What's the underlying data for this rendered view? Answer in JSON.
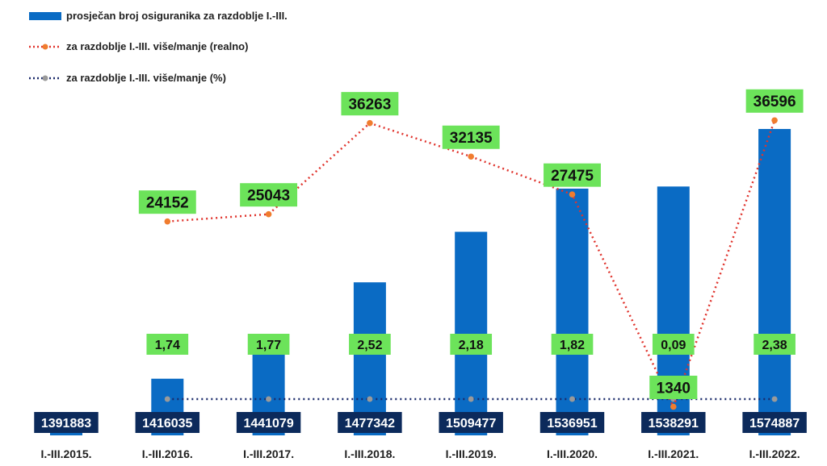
{
  "colors": {
    "bar": "#0a6bc4",
    "bar_label_bg": "#0c2a5b",
    "bar_label_text": "#ffffff",
    "callout_bg": "#6ce35a",
    "callout_text": "#111111",
    "line_real": "#e0342d",
    "marker_real": "#f07c2e",
    "line_pct": "#1b2a6a",
    "marker_pct": "#9a9a9a"
  },
  "legend": [
    {
      "label": "prosječan broj osiguranika za razdoblje I.-III.",
      "kind": "bar"
    },
    {
      "label": "za razdoblje I.-III. više/manje (realno)",
      "kind": "line_real"
    },
    {
      "label": "za razdoblje I.-III. više/manje (%)",
      "kind": "line_pct"
    }
  ],
  "chart_data": {
    "type": "bar",
    "title": "",
    "xlabel": "",
    "ylabel": "",
    "categories": [
      "I.-III.2015.",
      "I.-III.2016.",
      "I.-III.2017.",
      "I.-III.2018.",
      "I.-III.2019.",
      "I.-III.2020.",
      "I.-III.2021.",
      "I.-III.2022."
    ],
    "series": [
      {
        "name": "prosječan broj osiguranika za razdoblje I.-III.",
        "kind": "bar",
        "values": [
          1391883,
          1416035,
          1441079,
          1477342,
          1509477,
          1536951,
          1538291,
          1574887
        ],
        "labels": [
          "1391883",
          "1416035",
          "1441079",
          "1477342",
          "1509477",
          "1536951",
          "1538291",
          "1574887"
        ]
      },
      {
        "name": "za razdoblje I.-III. više/manje (realno)",
        "kind": "line",
        "values": [
          null,
          24152,
          25043,
          36263,
          32135,
          27475,
          1340,
          36596
        ],
        "labels": [
          "",
          "24152",
          "25043",
          "36263",
          "32135",
          "27475",
          "1340",
          "36596"
        ]
      },
      {
        "name": "za razdoblje I.-III. više/manje (%)",
        "kind": "line",
        "values": [
          null,
          1.74,
          1.77,
          2.52,
          2.18,
          1.82,
          0.09,
          2.38
        ],
        "labels": [
          "",
          "1,74",
          "1,77",
          "2,52",
          "2,18",
          "1,82",
          "0,09",
          "2,38"
        ]
      }
    ],
    "bar_axis_range": [
      1380000,
      1580000
    ],
    "legend_position": "top-left",
    "grid": false
  }
}
